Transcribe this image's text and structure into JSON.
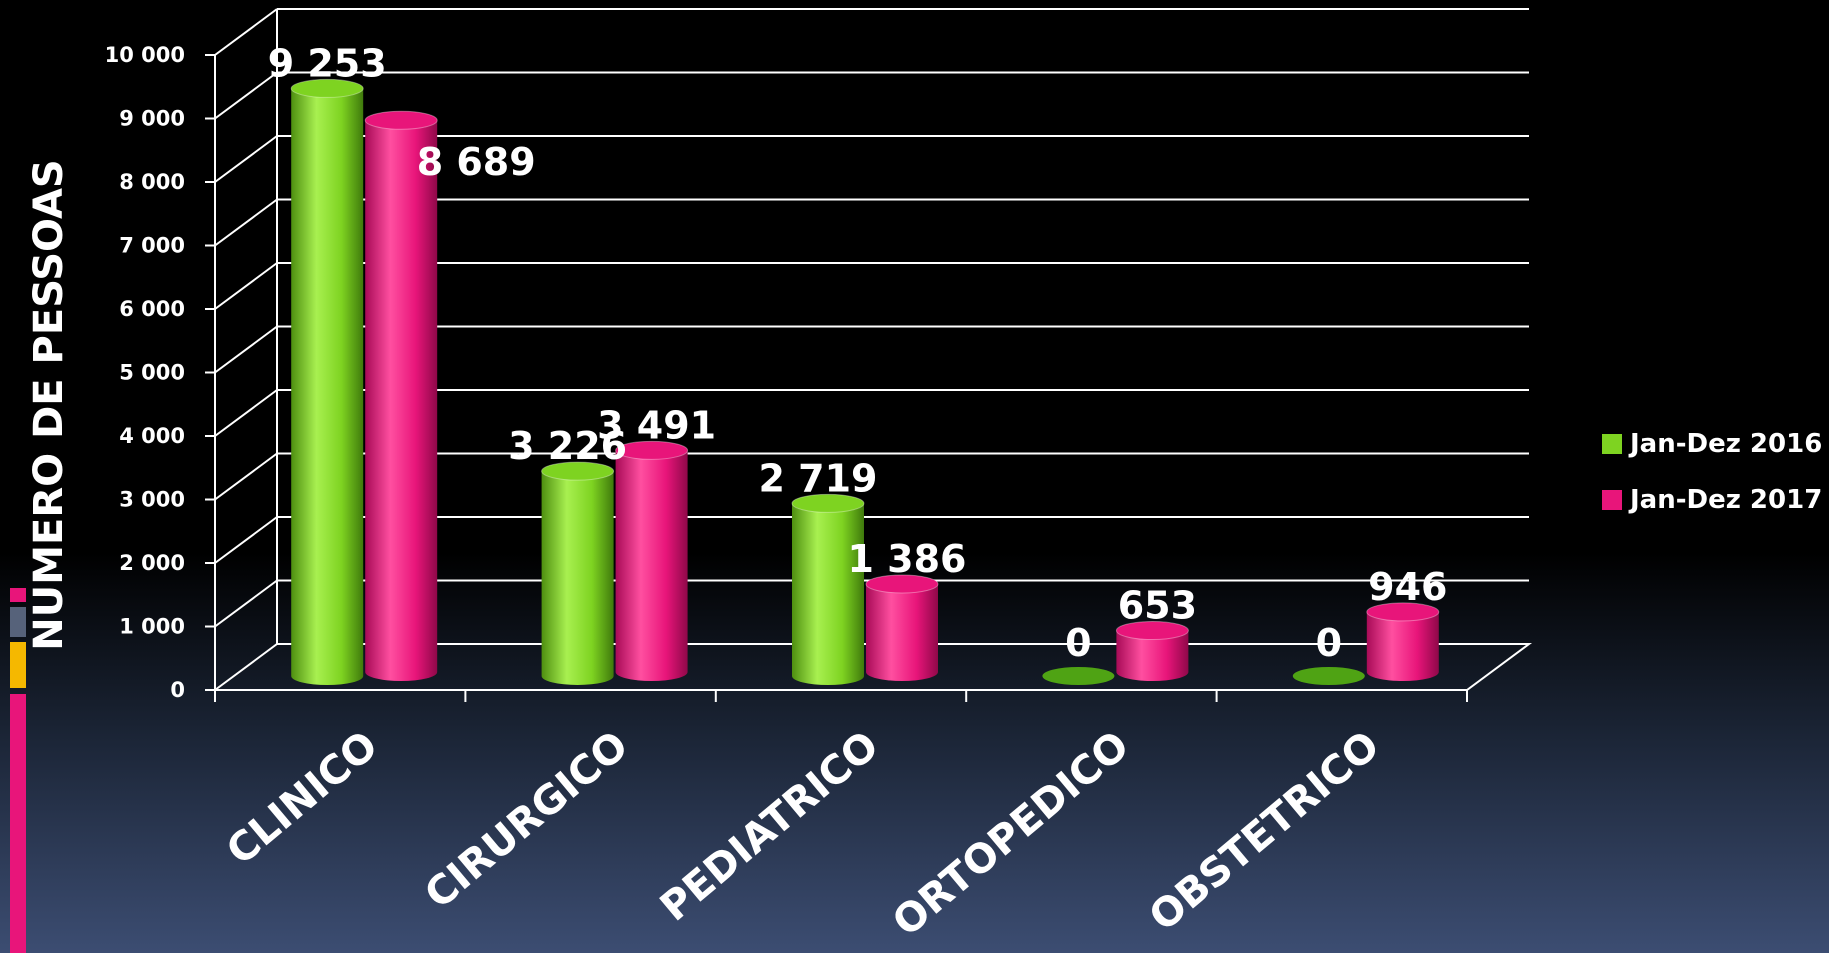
{
  "chart_data": {
    "type": "bar",
    "style": "3d-cylinder",
    "ylabel": "NUMERO  DE PESSOAS",
    "ylim": [
      0,
      10000
    ],
    "yticks": [
      0,
      1000,
      2000,
      3000,
      4000,
      5000,
      6000,
      7000,
      8000,
      9000,
      10000
    ],
    "ytick_labels": [
      "0",
      "1 000",
      "2 000",
      "3 000",
      "4 000",
      "5 000",
      "6 000",
      "7 000",
      "8 000",
      "9 000",
      "10 000"
    ],
    "categories": [
      "CLINICO",
      "CIRURGICO",
      "PEDIATRICO",
      "ORTOPEDICO",
      "OBSTETRICO"
    ],
    "series": [
      {
        "name": "Jan-Dez 2016",
        "color": "#7ED321",
        "values": [
          9253,
          3226,
          2719,
          0,
          0
        ],
        "labels": [
          "9 253",
          "3 226",
          "2 719",
          "0",
          "0"
        ]
      },
      {
        "name": "Jan-Dez 2017",
        "color": "#E8157A",
        "values": [
          8689,
          3491,
          1386,
          653,
          946
        ],
        "labels": [
          "8 689",
          "3 491",
          "1 386",
          "653",
          "946"
        ]
      }
    ],
    "grid": true,
    "legend": "right",
    "accent_colors": [
      "#E8157A",
      "#4A5568",
      "#F5B800",
      "#E8157A"
    ]
  }
}
